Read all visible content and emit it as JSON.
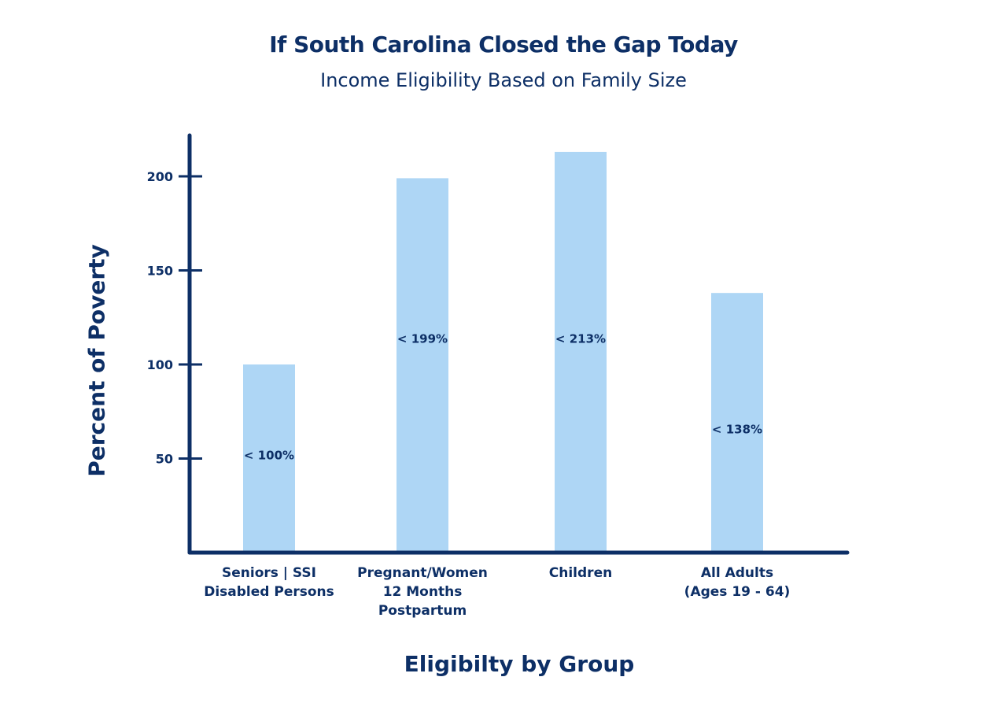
{
  "chart_data": {
    "type": "bar",
    "title": "If South Carolina Closed the Gap Today",
    "subtitle": "Income Eligibility Based on Family Size",
    "xlabel": "Eligibilty by Group",
    "ylabel": "Percent of Poverty",
    "categories": [
      [
        "Seniors | SSI",
        "Disabled Persons"
      ],
      [
        "Pregnant/Women",
        "12 Months",
        "Postpartum"
      ],
      [
        "Children"
      ],
      [
        "All Adults",
        "(Ages 19 - 64)"
      ]
    ],
    "values": [
      100,
      199,
      213,
      138
    ],
    "data_labels": [
      "< 100%",
      "< 199%",
      "< 213%",
      "< 138%"
    ],
    "yticks": [
      50,
      100,
      150,
      200
    ],
    "ylim": [
      0,
      222
    ],
    "grid": false,
    "colors": {
      "bar": "#aed6f5",
      "axis": "#0d2f66",
      "text": "#0d2f66"
    }
  }
}
